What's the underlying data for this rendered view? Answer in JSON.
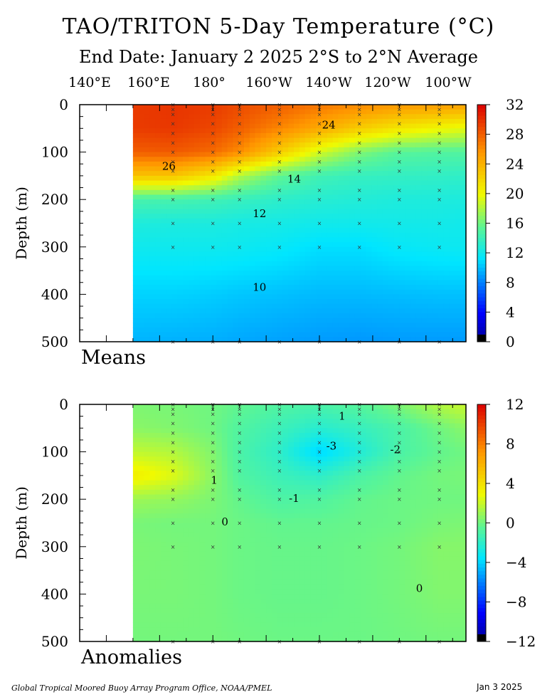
{
  "title": "TAO/TRITON 5-Day Temperature (°C)",
  "subtitle": "End Date: January 2 2025  2°S to 2°N Average",
  "longitude_labels": [
    "140°E",
    "160°E",
    "180°",
    "160°W",
    "140°W",
    "120°W",
    "100°W"
  ],
  "footer": {
    "credit": "Global Tropical Moored Buoy Array Program Office, NOAA/PMEL",
    "date": "Jan  3 2025"
  },
  "chart_data": [
    {
      "type": "heatmap",
      "name": "Means",
      "panel_label": "Means",
      "ylabel": "Depth (m)",
      "ylim": [
        500,
        0
      ],
      "yticks": [
        0,
        100,
        200,
        300,
        400,
        500
      ],
      "ytick_labels": [
        "0",
        "100",
        "200",
        "300",
        "400",
        "500"
      ],
      "xlim_deg_east": [
        130,
        275
      ],
      "data_start_lon": 150,
      "colorbar": {
        "min": 0,
        "max": 32,
        "ticks": [
          "0",
          "4",
          "8",
          "12",
          "16",
          "20",
          "24",
          "28",
          "32"
        ]
      },
      "contour_labels": [
        {
          "text": "24",
          "lon": 223.5,
          "depth": 43
        },
        {
          "text": "26",
          "lon": 163.5,
          "depth": 130
        },
        {
          "text": "14",
          "lon": 210.5,
          "depth": 157
        },
        {
          "text": "12",
          "lon": 197.5,
          "depth": 230
        },
        {
          "text": "10",
          "lon": 197.5,
          "depth": 385
        }
      ],
      "mooring_lons": [
        165,
        180,
        190,
        205,
        220,
        235,
        250,
        265
      ],
      "mooring_depths": [
        0,
        10,
        20,
        40,
        60,
        80,
        100,
        120,
        140,
        180,
        200,
        250,
        300,
        500
      ],
      "grid": {
        "lons": [
          150,
          165,
          180,
          190,
          205,
          220,
          235,
          250,
          265,
          275
        ],
        "depths": [
          0,
          50,
          100,
          150,
          200,
          250,
          300,
          400,
          500
        ],
        "values": [
          [
            29.5,
            29.8,
            29.5,
            28.8,
            28.0,
            27.0,
            26.2,
            25.5,
            25.3,
            25.0
          ],
          [
            29.5,
            29.6,
            29.0,
            28.0,
            26.3,
            24.5,
            22.5,
            21.0,
            20.0,
            19.5
          ],
          [
            28.0,
            28.2,
            27.5,
            26.0,
            22.5,
            19.0,
            16.5,
            15.2,
            15.0,
            15.0
          ],
          [
            23.0,
            23.0,
            21.0,
            18.0,
            15.5,
            14.2,
            13.7,
            13.6,
            13.5,
            13.4
          ],
          [
            14.5,
            14.5,
            14.2,
            13.8,
            13.3,
            13.0,
            12.8,
            12.6,
            12.6,
            12.5
          ],
          [
            12.6,
            12.5,
            12.5,
            12.3,
            12.2,
            12.0,
            12.0,
            12.1,
            12.1,
            12.0
          ],
          [
            11.9,
            11.9,
            11.9,
            11.8,
            11.5,
            11.0,
            11.0,
            11.5,
            11.7,
            11.8
          ],
          [
            10.6,
            10.6,
            10.4,
            10.2,
            10.0,
            9.8,
            9.8,
            9.9,
            10.0,
            10.0
          ],
          [
            9.6,
            9.5,
            9.4,
            9.2,
            9.0,
            8.8,
            8.7,
            8.8,
            8.8,
            8.8
          ]
        ]
      }
    },
    {
      "type": "heatmap",
      "name": "Anomalies",
      "panel_label": "Anomalies",
      "ylabel": "Depth (m)",
      "ylim": [
        500,
        0
      ],
      "yticks": [
        0,
        100,
        200,
        300,
        400,
        500
      ],
      "ytick_labels": [
        "0",
        "100",
        "200",
        "300",
        "400",
        "500"
      ],
      "xlim_deg_east": [
        130,
        275
      ],
      "data_start_lon": 150,
      "colorbar": {
        "min": -12,
        "max": 12,
        "ticks": [
          "−12",
          "−8",
          "−4",
          "0",
          "4",
          "8",
          "12"
        ]
      },
      "contour_labels": [
        {
          "text": "1",
          "lon": 228.5,
          "depth": 25
        },
        {
          "text": "-3",
          "lon": 224.5,
          "depth": 88
        },
        {
          "text": "-2",
          "lon": 248.5,
          "depth": 95
        },
        {
          "text": "1",
          "lon": 180.5,
          "depth": 160
        },
        {
          "text": "-1",
          "lon": 210.5,
          "depth": 198
        },
        {
          "text": "0",
          "lon": 184.5,
          "depth": 248
        },
        {
          "text": "0",
          "lon": 257.5,
          "depth": 388
        }
      ],
      "mooring_lons": [
        165,
        180,
        190,
        205,
        220,
        235,
        250,
        265
      ],
      "mooring_depths": [
        0,
        10,
        20,
        40,
        60,
        80,
        100,
        120,
        140,
        180,
        200,
        250,
        300,
        500
      ],
      "grid": {
        "lons": [
          150,
          165,
          180,
          190,
          205,
          220,
          235,
          250,
          265,
          275
        ],
        "depths": [
          0,
          50,
          100,
          150,
          200,
          250,
          300,
          400,
          500
        ],
        "values": [
          [
            0.3,
            0.2,
            0.0,
            -0.3,
            -0.8,
            -1.0,
            -0.6,
            0.3,
            1.5,
            2.0
          ],
          [
            0.6,
            0.4,
            0.0,
            -0.8,
            -1.5,
            -2.2,
            -1.7,
            -1.0,
            0.0,
            0.6
          ],
          [
            1.8,
            1.5,
            0.4,
            -1.0,
            -2.0,
            -4.0,
            -2.5,
            -1.0,
            -0.3,
            0.0
          ],
          [
            3.5,
            2.5,
            0.6,
            -0.8,
            -1.5,
            -2.0,
            -1.0,
            -0.3,
            0.1,
            0.2
          ],
          [
            1.0,
            0.8,
            0.3,
            -0.3,
            -0.9,
            -0.8,
            -0.3,
            -0.1,
            0.0,
            0.0
          ],
          [
            0.2,
            0.1,
            0.1,
            -0.1,
            -0.3,
            -0.3,
            -0.2,
            -0.1,
            0.2,
            0.3
          ],
          [
            0.3,
            0.2,
            0.1,
            -0.1,
            -0.2,
            -0.2,
            -0.1,
            0.1,
            0.5,
            0.5
          ],
          [
            0.2,
            0.2,
            0.1,
            -0.1,
            -0.2,
            -0.2,
            -0.1,
            0.1,
            0.4,
            0.4
          ],
          [
            0.1,
            0.1,
            0.1,
            0.0,
            -0.1,
            -0.1,
            -0.1,
            0.0,
            0.1,
            0.1
          ]
        ]
      }
    }
  ]
}
